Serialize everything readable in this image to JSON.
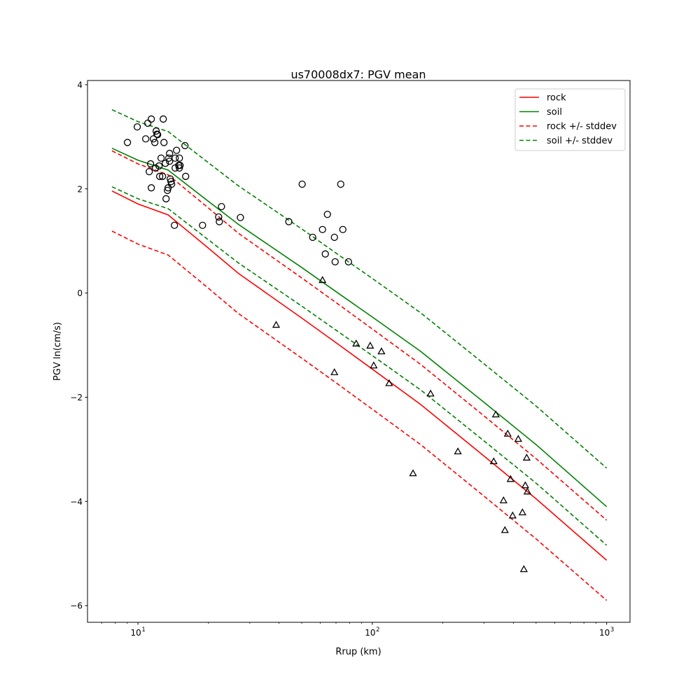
{
  "chart_data": {
    "type": "line",
    "title": "us70008dx7: PGV mean",
    "xlabel": "Rrup (km)",
    "ylabel": "PGV ln(cm/s)",
    "xscale": "log",
    "xlim": [
      6.09,
      1258
    ],
    "ylim": [
      -6.32,
      4.08
    ],
    "grid": false,
    "legend_position": "top-right",
    "yticks": [
      -6,
      -4,
      -2,
      0,
      2,
      4
    ],
    "ytick_labels": [
      "−6",
      "−4",
      "−2",
      "0",
      "2",
      "4"
    ],
    "xticks": [
      10,
      100,
      1000
    ],
    "xtick_labels": [
      {
        "base": "10",
        "exp": "1"
      },
      {
        "base": "10",
        "exp": "2"
      },
      {
        "base": "10",
        "exp": "3"
      }
    ],
    "x": [
      7.75,
      10,
      13.45,
      20,
      26.8,
      50,
      70.4,
      100,
      160.9,
      300,
      500,
      1000
    ],
    "series": [
      {
        "name": "rock",
        "color": "#ff0000",
        "dash": false,
        "values": [
          1.96,
          1.71,
          1.5,
          0.86,
          0.38,
          -0.48,
          -0.96,
          -1.46,
          -2.14,
          -3.13,
          -3.95,
          -5.13
        ]
      },
      {
        "name": "soil",
        "color": "#008000",
        "dash": false,
        "values": [
          2.78,
          2.55,
          2.36,
          1.76,
          1.32,
          0.49,
          0.02,
          -0.46,
          -1.12,
          -2.1,
          -2.91,
          -4.1
        ]
      },
      {
        "name": "rock +/- stddev",
        "color": "#ff0000",
        "dash": true,
        "values": [
          2.73,
          2.48,
          2.27,
          1.63,
          1.15,
          0.29,
          -0.19,
          -0.69,
          -1.37,
          -2.36,
          -3.18,
          -4.36
        ]
      },
      {
        "name": "rock +/- stddev (lower)",
        "color": "#ff0000",
        "dash": true,
        "legend": false,
        "values": [
          1.19,
          0.94,
          0.73,
          0.09,
          -0.39,
          -1.25,
          -1.73,
          -2.23,
          -2.91,
          -3.9,
          -4.72,
          -5.9
        ]
      },
      {
        "name": "soil +/- stddev",
        "color": "#008000",
        "dash": true,
        "values": [
          3.52,
          3.29,
          3.1,
          2.5,
          2.06,
          1.23,
          0.76,
          0.28,
          -0.38,
          -1.36,
          -2.17,
          -3.36
        ]
      },
      {
        "name": "soil +/- stddev (lower)",
        "color": "#008000",
        "dash": true,
        "legend": false,
        "values": [
          2.04,
          1.81,
          1.62,
          1.02,
          0.58,
          -0.25,
          -0.72,
          -1.2,
          -1.86,
          -2.84,
          -3.65,
          -4.84
        ]
      }
    ],
    "legend": [
      "rock",
      "soil",
      "rock +/- stddev",
      "soil +/- stddev"
    ],
    "scatter_circles": [
      [
        9.02,
        2.89
      ],
      [
        9.93,
        3.19
      ],
      [
        10.79,
        2.96
      ],
      [
        11.01,
        3.26
      ],
      [
        11.4,
        3.34
      ],
      [
        11.64,
        2.96
      ],
      [
        11.8,
        2.89
      ],
      [
        11.96,
        3.11
      ],
      [
        12.05,
        3.05
      ],
      [
        12.13,
        3.04
      ],
      [
        12.82,
        3.34
      ],
      [
        12.91,
        2.89
      ],
      [
        11.32,
        2.48
      ],
      [
        11.4,
        2.02
      ],
      [
        11.17,
        2.33
      ],
      [
        11.88,
        2.4
      ],
      [
        12.3,
        2.44
      ],
      [
        12.55,
        2.59
      ],
      [
        12.38,
        2.24
      ],
      [
        12.73,
        2.24
      ],
      [
        13.09,
        2.49
      ],
      [
        13.18,
        1.81
      ],
      [
        13.36,
        1.97
      ],
      [
        13.45,
        2.02
      ],
      [
        13.54,
        2.59
      ],
      [
        13.64,
        2.53
      ],
      [
        13.64,
        2.68
      ],
      [
        13.73,
        2.19
      ],
      [
        13.83,
        2.14
      ],
      [
        13.92,
        2.09
      ],
      [
        14.41,
        2.59
      ],
      [
        14.41,
        2.4
      ],
      [
        14.61,
        2.74
      ],
      [
        14.92,
        2.45
      ],
      [
        15.02,
        2.59
      ],
      [
        15.02,
        2.4
      ],
      [
        15.12,
        2.45
      ],
      [
        15.87,
        2.83
      ],
      [
        15.98,
        2.24
      ],
      [
        14.31,
        1.3
      ],
      [
        18.86,
        1.3
      ],
      [
        22.1,
        1.46
      ],
      [
        22.25,
        1.37
      ],
      [
        22.72,
        1.66
      ],
      [
        27.36,
        1.45
      ],
      [
        44.03,
        1.37
      ],
      [
        50.2,
        2.09
      ],
      [
        55.67,
        1.07
      ],
      [
        61.3,
        1.22
      ],
      [
        63.02,
        0.75
      ],
      [
        64.34,
        1.51
      ],
      [
        68.92,
        1.07
      ],
      [
        69.4,
        0.6
      ],
      [
        73.34,
        2.09
      ],
      [
        74.87,
        1.22
      ],
      [
        79.12,
        0.6
      ]
    ],
    "scatter_triangles": [
      [
        38.88,
        -0.61
      ],
      [
        61.3,
        0.25
      ],
      [
        68.92,
        -1.52
      ],
      [
        85.33,
        -0.97
      ],
      [
        97.95,
        -1.01
      ],
      [
        101.4,
        -1.39
      ],
      [
        109.4,
        -1.12
      ],
      [
        118.0,
        -1.73
      ],
      [
        149.2,
        -3.46
      ],
      [
        177.3,
        -1.93
      ],
      [
        231.9,
        -3.04
      ],
      [
        329.6,
        -3.23
      ],
      [
        336.5,
        -2.33
      ],
      [
        363.1,
        -3.98
      ],
      [
        368.1,
        -4.55
      ],
      [
        378.4,
        -2.7
      ],
      [
        389.0,
        -3.57
      ],
      [
        397.1,
        -4.27
      ],
      [
        419.6,
        -2.8
      ],
      [
        437.3,
        -4.21
      ],
      [
        443.4,
        -5.3
      ],
      [
        449.6,
        -3.69
      ],
      [
        455.9,
        -3.16
      ],
      [
        459.0,
        -3.81
      ]
    ]
  }
}
